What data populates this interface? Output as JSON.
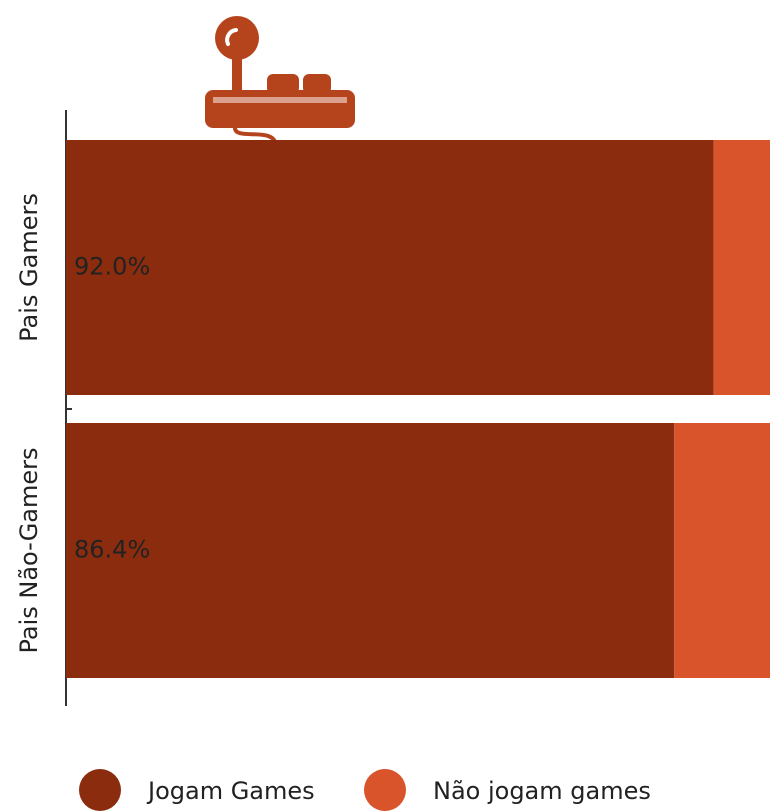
{
  "chart_data": {
    "type": "bar",
    "orientation": "horizontal",
    "stacked": true,
    "categories": [
      "Pais Gamers",
      "Pais Não-Gamers"
    ],
    "series": [
      {
        "name": "Jogam Games",
        "color": "#8a2c0d",
        "values": [
          92.0,
          86.4
        ],
        "value_labels": [
          "92.0%",
          "86.4%"
        ]
      },
      {
        "name": "Não jogam games",
        "color": "#d9532b",
        "values": [
          8.0,
          13.6
        ]
      }
    ],
    "xlim": [
      0,
      100
    ]
  }
}
